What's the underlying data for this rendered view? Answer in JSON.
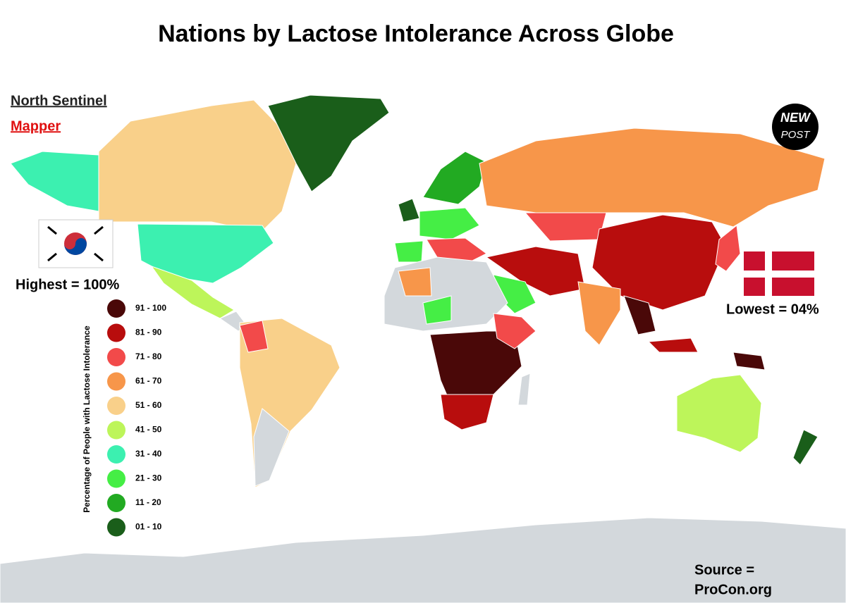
{
  "header": {
    "title": "Nations by Lactose Intolerance Across Globe"
  },
  "branding": {
    "line1": "North Sentinel",
    "line2": "Mapper",
    "badge_line1": "NEW",
    "badge_line2": "POST"
  },
  "highest": "Highest = 100%",
  "lowest": "Lowest = 04%",
  "legend": {
    "title": "Percentage of People with Lactose Intolerance",
    "items": [
      {
        "label": "91 - 100",
        "color": "#4a0808"
      },
      {
        "label": "81 - 90",
        "color": "#b80d0d"
      },
      {
        "label": "71 - 80",
        "color": "#f24a4a"
      },
      {
        "label": "61 - 70",
        "color": "#f7964a"
      },
      {
        "label": "51 - 60",
        "color": "#f9d08a"
      },
      {
        "label": "41 - 50",
        "color": "#bdf55a"
      },
      {
        "label": "31 - 40",
        "color": "#3cf0b0"
      },
      {
        "label": "21 - 30",
        "color": "#45ee45"
      },
      {
        "label": "11 - 20",
        "color": "#22aa22"
      },
      {
        "label": "01 - 10",
        "color": "#1a5e1a"
      }
    ]
  },
  "source": {
    "line1": "Source =",
    "line2": "ProCon.org"
  }
}
